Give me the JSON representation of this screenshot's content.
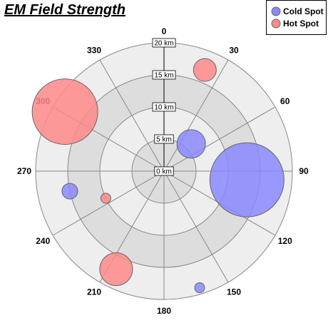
{
  "chart_data": {
    "type": "scatter",
    "subtype": "polar-bubble",
    "title": "EM Field Strength",
    "angle_labels": [
      "0",
      "30",
      "60",
      "90",
      "120",
      "150",
      "180",
      "210",
      "240",
      "270",
      "300",
      "330"
    ],
    "radial_axis": {
      "ticks": [
        0,
        5,
        10,
        15,
        20
      ],
      "tick_labels": [
        "0 km",
        "5 km",
        "10 km",
        "15 km",
        "20 km"
      ],
      "range": [
        0,
        20
      ],
      "unit": "km"
    },
    "legend": {
      "placement": "top-right"
    },
    "series": [
      {
        "name": "Cold Spot",
        "color": "#8888ff",
        "points": [
          {
            "angle": 45,
            "radius": 6,
            "size": 20
          },
          {
            "angle": 96,
            "radius": 13,
            "size": 52
          },
          {
            "angle": 258,
            "radius": 15,
            "size": 11
          },
          {
            "angle": 163,
            "radius": 19,
            "size": 7
          }
        ]
      },
      {
        "name": "Hot Spot",
        "color": "#ff8888",
        "points": [
          {
            "angle": 22,
            "radius": 17,
            "size": 16
          },
          {
            "angle": 301,
            "radius": 18,
            "size": 46
          },
          {
            "angle": 245,
            "radius": 10,
            "size": 7
          },
          {
            "angle": 206,
            "radius": 17,
            "size": 23
          }
        ]
      }
    ]
  }
}
